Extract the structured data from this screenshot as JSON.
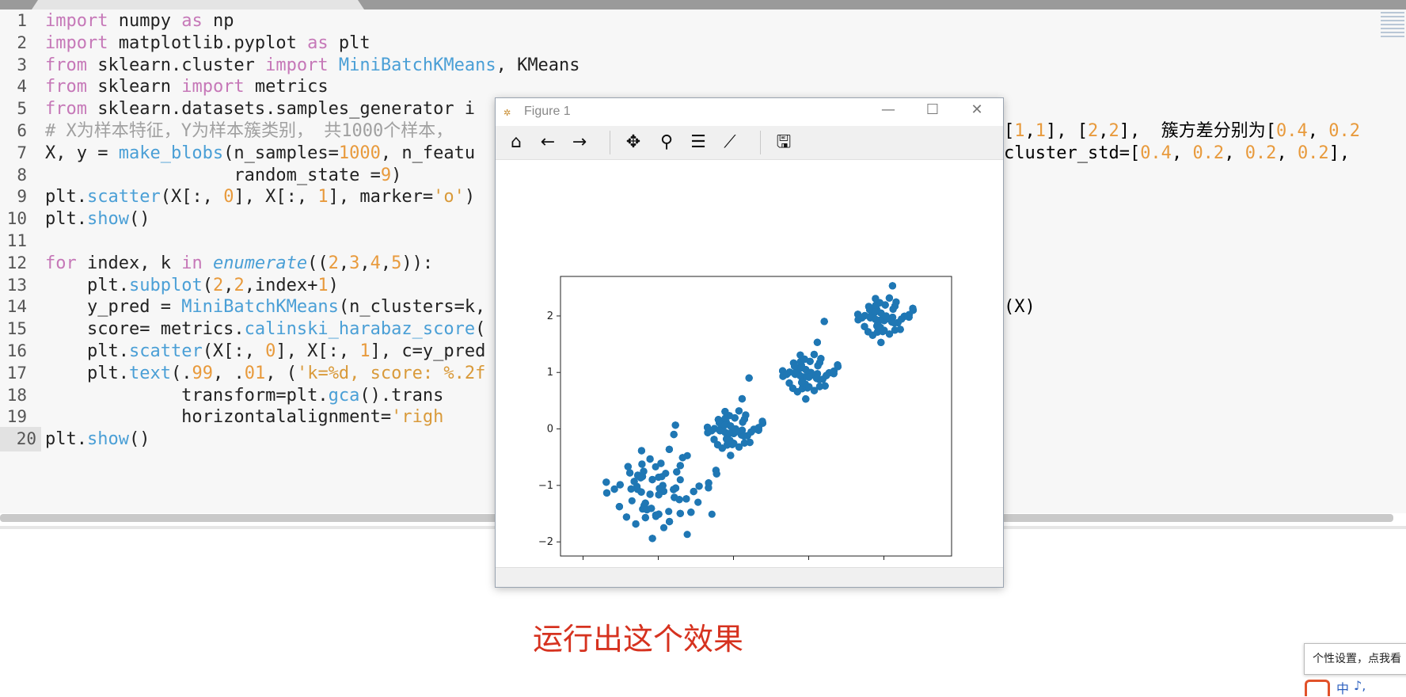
{
  "editor": {
    "lines": [
      {
        "n": "1",
        "t": "import numpy as np"
      },
      {
        "n": "2",
        "t": "import matplotlib.pyplot as plt"
      },
      {
        "n": "3",
        "t": "from sklearn.cluster import MiniBatchKMeans, KMeans"
      },
      {
        "n": "4",
        "t": "from sklearn import metrics"
      },
      {
        "n": "5",
        "t": "from sklearn.datasets.samples_generator i"
      },
      {
        "n": "6",
        "t": "# X为样本特征，Y为样本簇类别， 共1000个样本，"
      },
      {
        "n": "7",
        "t": "X, y = make_blobs(n_samples=1000, n_featu"
      },
      {
        "n": "8",
        "t": "                  random_state =9)"
      },
      {
        "n": "9",
        "t": "plt.scatter(X[:, 0], X[:, 1], marker='o')"
      },
      {
        "n": "10",
        "t": "plt.show()"
      },
      {
        "n": "11",
        "t": ""
      },
      {
        "n": "12",
        "t": "for index, k in enumerate((2,3,4,5)):"
      },
      {
        "n": "13",
        "t": "    plt.subplot(2,2,index+1)"
      },
      {
        "n": "14",
        "t": "    y_pred = MiniBatchKMeans(n_clusters=k,"
      },
      {
        "n": "15",
        "t": "    score= metrics.calinski_harabaz_score("
      },
      {
        "n": "16",
        "t": "    plt.scatter(X[:, 0], X[:, 1], c=y_pred"
      },
      {
        "n": "17",
        "t": "    plt.text(.99, .01, ('k=%d, score: %.2f"
      },
      {
        "n": "18",
        "t": "             transform=plt.gca().trans"
      },
      {
        "n": "19",
        "t": "             horizontalalignment='righ"
      },
      {
        "n": "20",
        "t": "plt.show()"
      }
    ],
    "right_fragments": {
      "line6": "[1,1], [2,2],  簇方差分别为[0.4, 0.2",
      "line7": "cluster_std=[0.4, 0.2, 0.2, 0.2],",
      "line14": "(X)"
    }
  },
  "figure": {
    "title": "Figure 1",
    "icons": [
      "home-icon",
      "back-arrow-icon",
      "forward-arrow-icon",
      "pan-icon",
      "zoom-icon",
      "subplots-icon",
      "edit-axis-icon",
      "save-icon"
    ]
  },
  "chart_data": {
    "type": "scatter",
    "title": "",
    "xlabel": "",
    "ylabel": "",
    "xlim": [
      -2.3,
      2.9
    ],
    "ylim": [
      -2.25,
      2.7
    ],
    "xticks": [
      -2,
      -1,
      0,
      1,
      2
    ],
    "yticks": [
      -2,
      -1,
      0,
      1,
      2
    ],
    "color": "#1f77b4",
    "clusters": [
      {
        "center": [
          -1,
          -1
        ],
        "std": 0.4,
        "n": 250
      },
      {
        "center": [
          0,
          0
        ],
        "std": 0.2,
        "n": 250
      },
      {
        "center": [
          1,
          1
        ],
        "std": 0.2,
        "n": 250
      },
      {
        "center": [
          2,
          2
        ],
        "std": 0.2,
        "n": 250
      }
    ]
  },
  "caption": "运行出这个效果",
  "tooltip": "个性设置，点我看",
  "tray": {
    "ime": "中",
    "punct": "♪,"
  }
}
